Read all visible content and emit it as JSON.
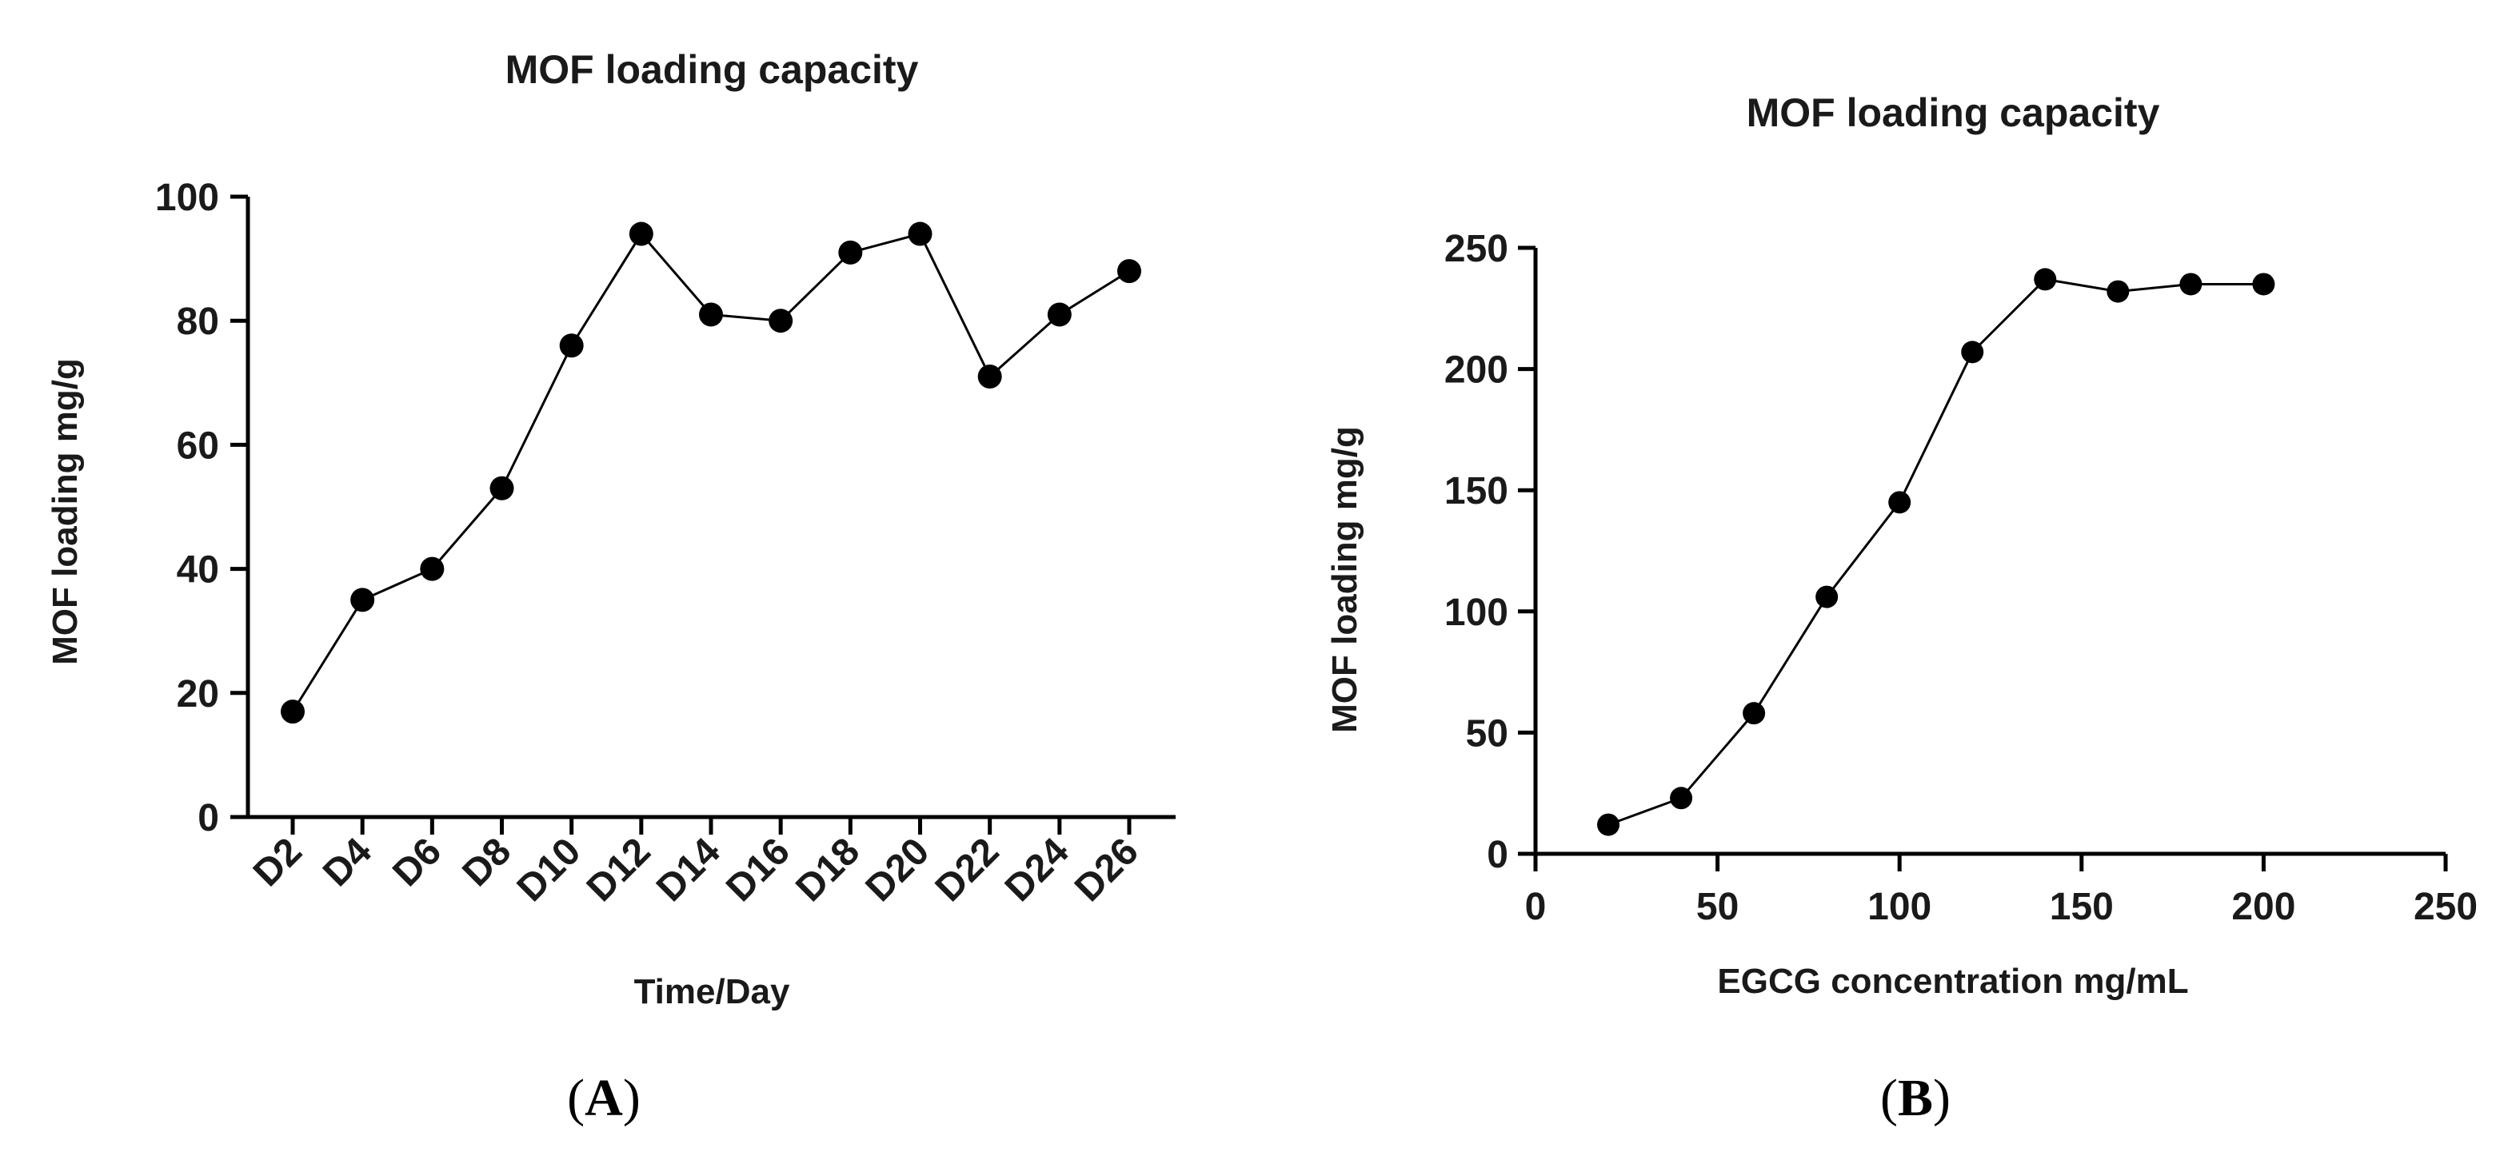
{
  "chart_data": [
    {
      "panel": "A",
      "type": "line",
      "title": "MOF loading capacity",
      "xlabel": "Time/Day",
      "ylabel": "MOF loading mg/g",
      "categories": [
        "D2",
        "D4",
        "D6",
        "D8",
        "D10",
        "D12",
        "D14",
        "D16",
        "D18",
        "D20",
        "D22",
        "D24",
        "D26"
      ],
      "values": [
        17,
        35,
        40,
        53,
        76,
        94,
        81,
        80,
        91,
        94,
        71,
        81,
        88
      ],
      "ylim": [
        0,
        100
      ],
      "yticks": [
        0,
        20,
        40,
        60,
        80,
        100
      ],
      "marker": "circle",
      "color": "#000000"
    },
    {
      "panel": "B",
      "type": "line",
      "title": "MOF loading capacity",
      "xlabel": "EGCG concentration mg/mL",
      "ylabel": "MOF loading mg/g",
      "x": [
        20,
        40,
        60,
        80,
        100,
        120,
        140,
        160,
        180,
        200
      ],
      "y": [
        12,
        23,
        58,
        106,
        145,
        207,
        237,
        232,
        235,
        235
      ],
      "xlim": [
        0,
        250
      ],
      "ylim": [
        0,
        250
      ],
      "xticks": [
        0,
        50,
        100,
        150,
        200,
        250
      ],
      "yticks": [
        0,
        50,
        100,
        150,
        200,
        250
      ],
      "marker": "circle",
      "color": "#000000"
    }
  ],
  "panels": {
    "a_label": "A",
    "b_label": "B",
    "open_paren": "(",
    "close_paren": ")"
  }
}
